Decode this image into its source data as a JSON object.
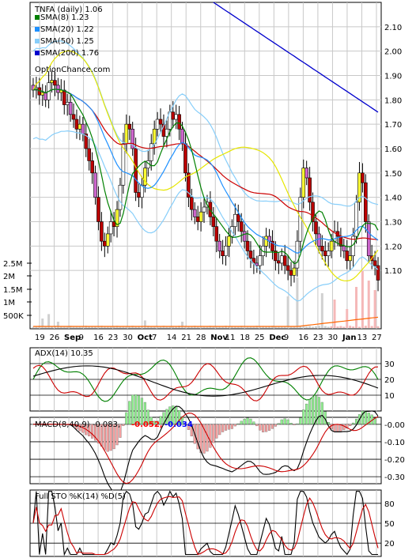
{
  "chart_data": [
    {
      "type": "line",
      "title": "TNFA (daily) 1.06",
      "watermark": "OptionChance.com",
      "legend": [
        {
          "label": "SMA(8) 1.23",
          "color": "#008000"
        },
        {
          "label": "SMA(20) 1.22",
          "color": "#1e90ff"
        },
        {
          "label": "SMA(50) 1.25",
          "color": "#87cefa"
        },
        {
          "label": "SMA(200) 1.76",
          "color": "#0000cd"
        }
      ],
      "legend_position": "top-left",
      "price_ticks": [
        "2.10",
        "2.00",
        "1.90",
        "1.80",
        "1.70",
        "1.60",
        "1.50",
        "1.40",
        "1.30",
        "1.20",
        "1.10"
      ],
      "ylim": [
        1.0,
        2.2
      ],
      "volume_ticks": [
        "2.5M",
        "2M",
        "1.5M",
        "1M",
        "500K"
      ],
      "x_tick_labels": [
        "19",
        "26",
        "Sep",
        "9",
        "16",
        "23",
        "30",
        "Oct",
        "7",
        "14",
        "21",
        "28",
        "Nov",
        "11",
        "18",
        "25",
        "Dec",
        "9",
        "16",
        "23",
        "30",
        "Jan",
        "13",
        "27"
      ],
      "grid": true,
      "closes": [
        1.84,
        1.85,
        1.82,
        1.83,
        1.8,
        1.87,
        1.88,
        1.86,
        1.83,
        1.84,
        1.78,
        1.79,
        1.74,
        1.72,
        1.68,
        1.7,
        1.66,
        1.6,
        1.55,
        1.5,
        1.4,
        1.3,
        1.22,
        1.2,
        1.25,
        1.3,
        1.28,
        1.35,
        1.45,
        1.62,
        1.7,
        1.68,
        1.6,
        1.42,
        1.4,
        1.45,
        1.52,
        1.55,
        1.62,
        1.68,
        1.72,
        1.7,
        1.65,
        1.68,
        1.75,
        1.72,
        1.74,
        1.68,
        1.62,
        1.5,
        1.4,
        1.35,
        1.32,
        1.3,
        1.34,
        1.36,
        1.38,
        1.32,
        1.28,
        1.22,
        1.18,
        1.16,
        1.2,
        1.24,
        1.28,
        1.33,
        1.3,
        1.26,
        1.22,
        1.18,
        1.15,
        1.13,
        1.12,
        1.16,
        1.2,
        1.24,
        1.22,
        1.18,
        1.14,
        1.13,
        1.16,
        1.12,
        1.1,
        1.08,
        1.11,
        1.22,
        1.4,
        1.52,
        1.48,
        1.38,
        1.3,
        1.25,
        1.2,
        1.18,
        1.16,
        1.18,
        1.22,
        1.26,
        1.24,
        1.2,
        1.18,
        1.14,
        1.16,
        1.24,
        1.38,
        1.5,
        1.46,
        1.3,
        1.16,
        1.14,
        1.12,
        1.06
      ],
      "volume_spikes": [
        [
          3,
          0.15
        ],
        [
          5,
          0.22
        ],
        [
          8,
          0.1
        ],
        [
          36,
          0.12
        ],
        [
          48,
          0.1
        ],
        [
          82,
          0.5
        ],
        [
          85,
          0.8
        ],
        [
          93,
          0.55
        ],
        [
          97,
          0.45
        ],
        [
          101,
          0.3
        ],
        [
          104,
          0.65
        ],
        [
          106,
          0.9
        ],
        [
          108,
          0.75
        ],
        [
          110,
          0.6
        ]
      ]
    },
    {
      "type": "line",
      "title": "ADX(14) 10.35",
      "y_ticks": [
        "30",
        "20",
        "10"
      ],
      "ylim": [
        0,
        40
      ]
    },
    {
      "type": "line",
      "title": "MACD(8,40,9) -0.083,",
      "annotations": [
        {
          "text": "-0.052,",
          "color": "#ff0000"
        },
        {
          "text": "-0.034",
          "color": "#0000ff"
        }
      ],
      "y_ticks": [
        "-0.00",
        "-0.10",
        "-0.20",
        "-0.30"
      ],
      "ylim": [
        -0.34,
        0.04
      ]
    },
    {
      "type": "line",
      "title": "Full STO %K(14) %D(5)",
      "y_ticks": [
        "80",
        "50",
        "20"
      ],
      "ylim": [
        0,
        100
      ]
    }
  ]
}
